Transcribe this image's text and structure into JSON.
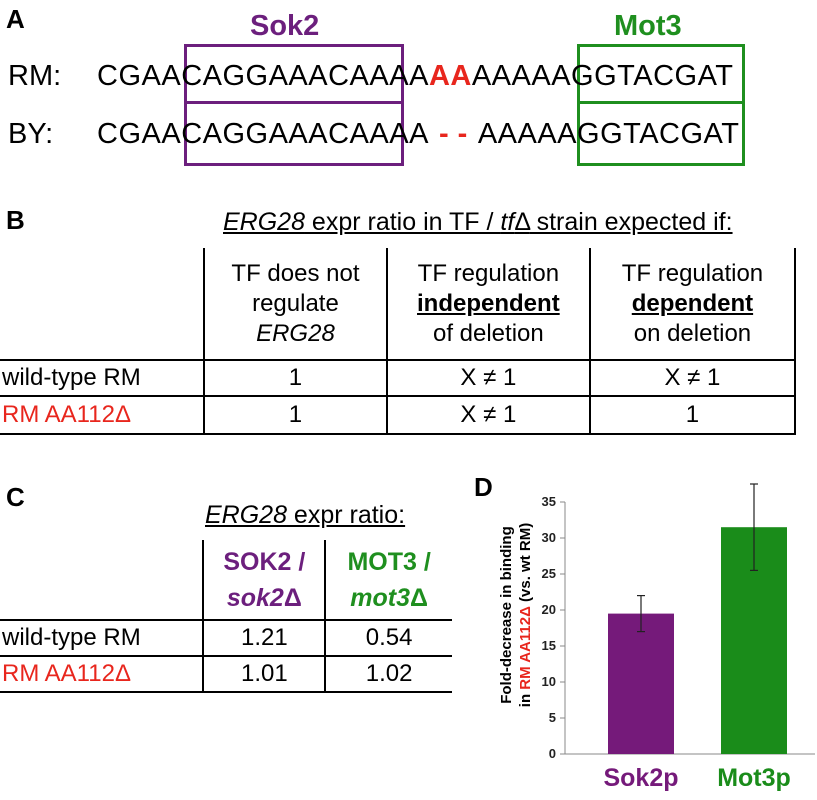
{
  "panelA": {
    "letter": "A",
    "sok2_title": "Sok2",
    "mot3_title": "Mot3",
    "rm_label": "RM:",
    "by_label": "BY:",
    "rm_seq": {
      "pre": "CGAA",
      "sok2": "CAGGAAACA",
      "mid1": "AAA",
      "insert": "AA",
      "mid2": "AAA",
      "mot3": "AAGGTAC",
      "post": "GAT"
    },
    "by_seq": {
      "pre": "CGAA",
      "sok2": "CAGGAAACA",
      "mid1": "AAA",
      "gap": "- -",
      "mid2": "AAA",
      "mot3": "AAGGTAC",
      "post": "GAT"
    }
  },
  "panelB": {
    "letter": "B",
    "title_gene": "ERG28",
    "title_mid": " expr ratio in TF / ",
    "title_tf": "tf",
    "title_delta": "Δ",
    "title_end": " strain expected if:",
    "col1": {
      "line1": "TF does not",
      "line2": "regulate",
      "line3": "ERG28"
    },
    "col2": {
      "line1": "TF regulation",
      "line2": "independent",
      "line3": "of deletion"
    },
    "col3": {
      "line1": "TF regulation",
      "line2": "dependent",
      "line3": "on deletion"
    },
    "rows": [
      {
        "label": "wild-type RM",
        "c1": "1",
        "c2": "X ≠ 1",
        "c3": "X ≠ 1"
      },
      {
        "label": "RM AA112Δ",
        "c1": "1",
        "c2": "X ≠ 1",
        "c3": "1"
      }
    ]
  },
  "panelC": {
    "letter": "C",
    "title_gene": "ERG28",
    "title_rest": " expr ratio:",
    "col1": {
      "line1": "SOK2 /",
      "line2_italic": "sok2",
      "line2_delta": "Δ"
    },
    "col2": {
      "line1": "MOT3 /",
      "line2_italic": "mot3",
      "line2_delta": "Δ"
    },
    "rows": [
      {
        "label": "wild-type RM",
        "c1": "1.21",
        "c2": "0.54"
      },
      {
        "label": "RM AA112Δ",
        "c1": "1.01",
        "c2": "1.02"
      }
    ]
  },
  "panelD": {
    "letter": "D",
    "ylabel_line1": "Fold-decrease in binding",
    "ylabel_line2_pre": "in ",
    "ylabel_line2_red": "RM AA112Δ",
    "ylabel_line2_post": " (vs. wt RM)"
  },
  "chart_data": {
    "type": "bar",
    "categories": [
      "Sok2p",
      "Mot3p"
    ],
    "values": [
      19.5,
      31.5
    ],
    "error_low": [
      17.0,
      25.5
    ],
    "error_high": [
      22.0,
      37.5
    ],
    "colors": [
      "#751a7a",
      "#1a8c1a"
    ],
    "ylim": [
      0,
      35
    ],
    "yticks": [
      0,
      5,
      10,
      15,
      20,
      25,
      30,
      35
    ],
    "ylabel": "Fold-decrease in binding in RM AA112Δ (vs. wt RM)",
    "grid": false
  }
}
